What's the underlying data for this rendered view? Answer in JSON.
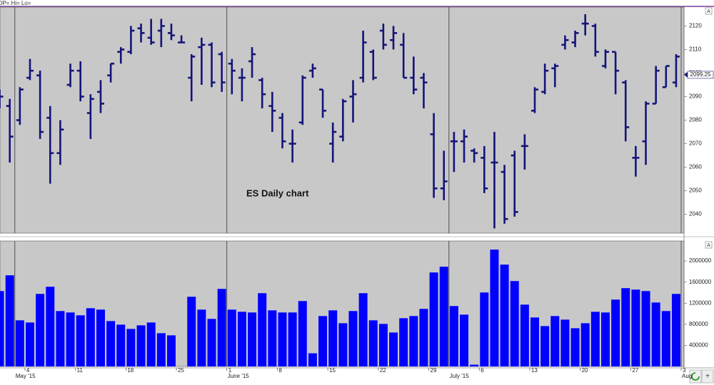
{
  "chart_data": [
    {
      "type": "ohlc",
      "header": "OP= Hi= Lo=",
      "title": "ES Daily chart",
      "categories": [
        null,
        null,
        null,
        "4",
        null,
        null,
        null,
        null,
        "11",
        null,
        null,
        null,
        null,
        "18",
        null,
        null,
        null,
        null,
        "25",
        null,
        null,
        null,
        null,
        "1",
        null,
        null,
        null,
        null,
        "8",
        null,
        null,
        null,
        null,
        "15",
        null,
        null,
        null,
        null,
        "22",
        null,
        null,
        null,
        null,
        "29",
        null,
        null,
        null,
        null,
        "6",
        null,
        null,
        null,
        null,
        "13",
        null,
        null,
        null,
        null,
        "20",
        null,
        null,
        null,
        null,
        "27",
        null,
        null,
        null,
        null,
        "3"
      ],
      "month_starts": [
        {
          "index": 2,
          "label": "May '15"
        },
        {
          "index": 23,
          "label": "June '15"
        },
        {
          "index": 45,
          "label": "July '15"
        },
        {
          "index": 68,
          "label": "Aug"
        }
      ],
      "open": [
        2091,
        2086,
        2080,
        2098,
        2099,
        2081,
        2066,
        2095,
        2101,
        2083,
        2092,
        2099,
        2109,
        2109,
        2119,
        2115,
        2118,
        2117,
        2113,
        2098,
        2111,
        2112,
        2108,
        2104,
        2098,
        2105,
        2097,
        2086,
        2081,
        2070,
        2079,
        2101,
        2093,
        2070,
        2073,
        2090,
        2098,
        2109,
        2118,
        2114,
        2112,
        2098,
        2098,
        2074,
        2051,
        2071,
        2071,
        2067,
        2064,
        2062,
        2058,
        2065,
        2069,
        2084,
        2092,
        2102,
        2112,
        2113,
        2121,
        2120,
        2103,
        2109,
        2096,
        2064,
        2071,
        2087,
        2094,
        2096,
        null
      ],
      "high": [
        2093,
        2089,
        2094,
        2106,
        2101,
        2086,
        2080,
        2104,
        2105,
        2091,
        2097,
        2104,
        2111,
        2120,
        2121,
        2123,
        2123,
        2121,
        2116,
        2108,
        2115,
        2113,
        2109,
        2106,
        2102,
        2111,
        2098,
        2092,
        2083,
        2076,
        2099,
        2104,
        2093,
        2079,
        2089,
        2097,
        2118,
        2110,
        2121,
        2120,
        2117,
        2107,
        2100,
        2083,
        2067,
        2075,
        2076,
        2068,
        2069,
        2075,
        2061,
        2067,
        2074,
        2094,
        2104,
        2104,
        2116,
        2118,
        2125,
        2121,
        2110,
        2109,
        2097,
        2069,
        2088,
        2103,
        2103,
        2108,
        null
      ],
      "low": [
        2085,
        2062,
        2078,
        2097,
        2072,
        2053,
        2061,
        2094,
        2088,
        2072,
        2083,
        2096,
        2104,
        2108,
        2113,
        2112,
        2111,
        2114,
        2113,
        2088,
        2095,
        2094,
        2092,
        2091,
        2088,
        2098,
        2085,
        2075,
        2068,
        2062,
        2078,
        2098,
        2081,
        2062,
        2071,
        2079,
        2096,
        2097,
        2110,
        2110,
        2098,
        2091,
        2085,
        2047,
        2046,
        2058,
        2062,
        2062,
        2049,
        2034,
        2036,
        2039,
        2059,
        2083,
        2091,
        2094,
        2110,
        2111,
        2116,
        2107,
        2102,
        2091,
        2071,
        2056,
        2061,
        2087,
        2094,
        2094,
        null
      ],
      "close": [
        2090,
        2073,
        2093,
        2101,
        2075,
        2066,
        2076,
        2101,
        2090,
        2089,
        2087,
        2104,
        2110,
        2118,
        2117,
        2113,
        2120,
        2116,
        2113,
        2107,
        2112,
        2096,
        2096,
        2101,
        2098,
        2108,
        2091,
        2084,
        2071,
        2070,
        2098,
        2102,
        2084,
        2075,
        2088,
        2091,
        2113,
        2098,
        2112,
        2117,
        2098,
        2093,
        2096,
        2051,
        2054,
        2071,
        2073,
        2066,
        2051,
        2062,
        2038,
        2041,
        2069,
        2093,
        2101,
        2103,
        2114,
        2117,
        2121,
        2109,
        2109,
        2101,
        2077,
        2064,
        2087,
        2101,
        2103,
        2107,
        null
      ],
      "color": "#14147a",
      "last_price": 2099.25,
      "ylim": [
        2032,
        2128
      ],
      "yticks": [
        2040,
        2050,
        2060,
        2070,
        2080,
        2090,
        2100,
        2110,
        2120
      ]
    },
    {
      "type": "bar",
      "values": [
        1430000,
        1729000,
        875000,
        834000,
        1376000,
        1512000,
        1051000,
        1024000,
        970000,
        1105000,
        1078000,
        861000,
        793000,
        712000,
        780000,
        834000,
        631000,
        590000,
        0,
        1322000,
        1078000,
        902000,
        1471000,
        1078000,
        1037000,
        1024000,
        1390000,
        1064000,
        1024000,
        1024000,
        1241000,
        250000,
        956000,
        1064000,
        820000,
        1051000,
        1390000,
        875000,
        807000,
        644000,
        915000,
        956000,
        1092000,
        1783000,
        1892000,
        1146000,
        983000,
        34000,
        1403000,
        2217000,
        1932000,
        1620000,
        1173000,
        929000,
        766000,
        956000,
        888000,
        725000,
        820000,
        1037000,
        1024000,
        1268000,
        1485000,
        1458000,
        1430000,
        1213000,
        1051000,
        1376000,
        null
      ],
      "color": "#0000ff",
      "ylim": [
        0,
        2380000
      ],
      "yticks": [
        400000,
        800000,
        1200000,
        1600000,
        2000000
      ]
    }
  ]
}
